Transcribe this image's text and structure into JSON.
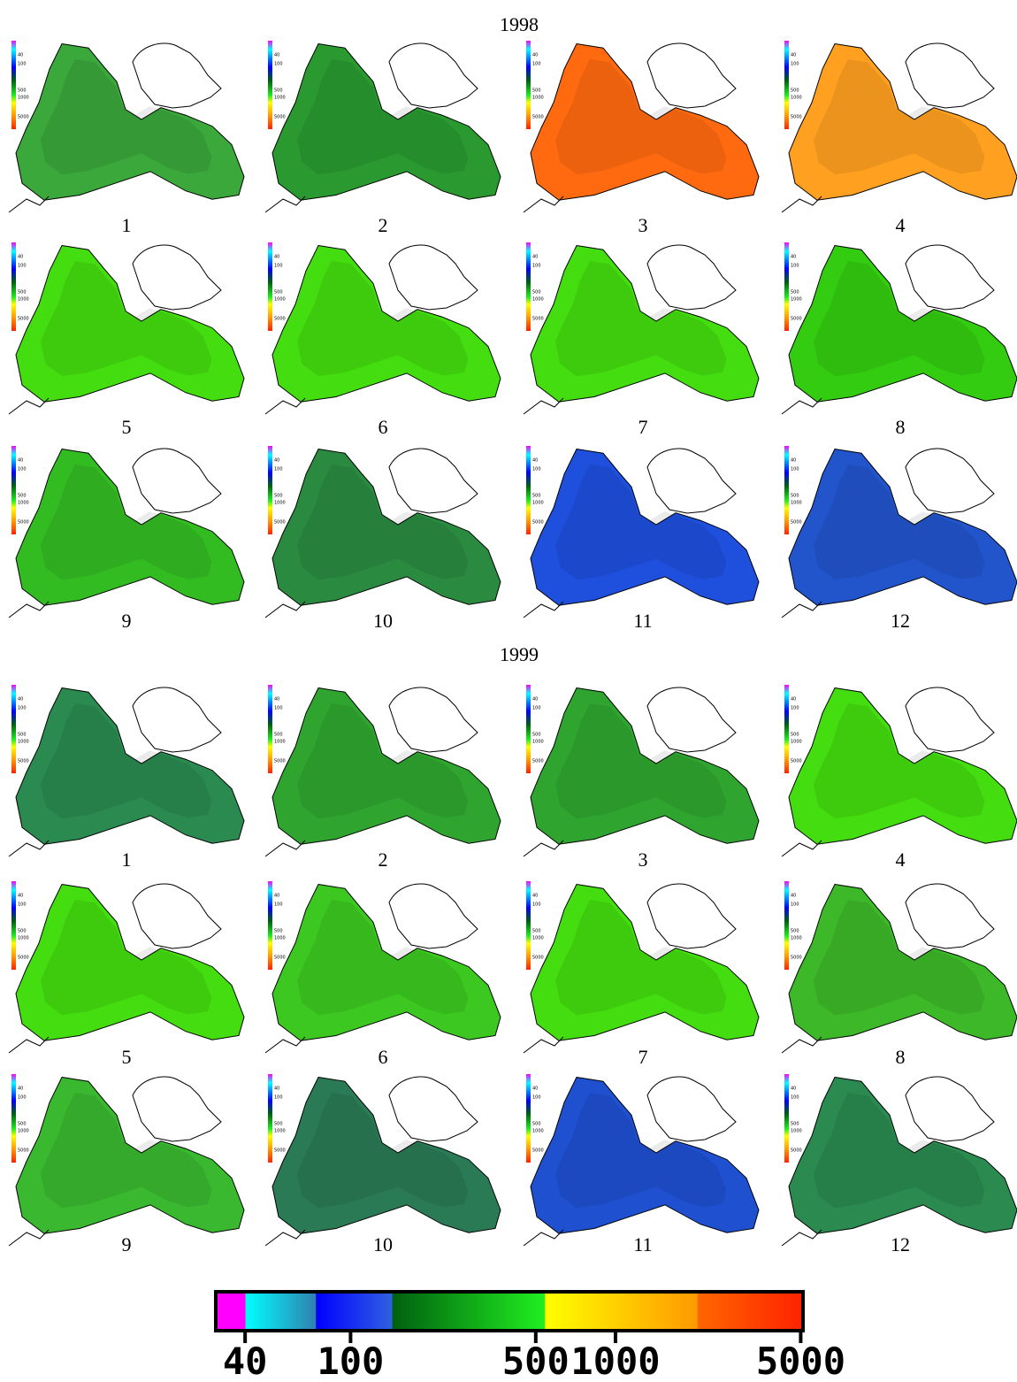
{
  "years": [
    {
      "title": "1998",
      "panels": [
        {
          "label": "1",
          "color": "#3aa83a"
        },
        {
          "label": "2",
          "color": "#2a9a30"
        },
        {
          "label": "3",
          "color": "#ff6a10"
        },
        {
          "label": "4",
          "color": "#ffa020"
        },
        {
          "label": "5",
          "color": "#44dd10"
        },
        {
          "label": "6",
          "color": "#44dd10"
        },
        {
          "label": "7",
          "color": "#44dd10"
        },
        {
          "label": "8",
          "color": "#33cc10"
        },
        {
          "label": "9",
          "color": "#33bb22"
        },
        {
          "label": "10",
          "color": "#2a8a40"
        },
        {
          "label": "11",
          "color": "#1f4fdd"
        },
        {
          "label": "12",
          "color": "#2255cc"
        }
      ]
    },
    {
      "title": "1999",
      "panels": [
        {
          "label": "1",
          "color": "#2a8a50"
        },
        {
          "label": "2",
          "color": "#2fa530"
        },
        {
          "label": "3",
          "color": "#2fa530"
        },
        {
          "label": "4",
          "color": "#44dd10"
        },
        {
          "label": "5",
          "color": "#44dd10"
        },
        {
          "label": "6",
          "color": "#3cc820"
        },
        {
          "label": "7",
          "color": "#44dd10"
        },
        {
          "label": "8",
          "color": "#3cb828"
        },
        {
          "label": "9",
          "color": "#3ab830"
        },
        {
          "label": "10",
          "color": "#2a7a55"
        },
        {
          "label": "11",
          "color": "#1f50d0"
        },
        {
          "label": "12",
          "color": "#2a8a50"
        }
      ]
    }
  ],
  "colorbar": {
    "log": true,
    "clim": [
      31,
      5100
    ],
    "ticks": [
      40,
      100,
      500,
      1000,
      5000
    ]
  }
}
